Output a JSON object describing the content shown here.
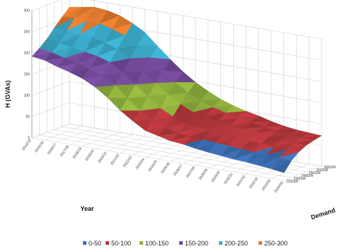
{
  "chart_data": {
    "type": "surface3d",
    "zlabel": "H (GVAs)",
    "xlabel": "Year",
    "ylabel": "Demand",
    "zlim": [
      0,
      300
    ],
    "z_ticks": [
      "0",
      "50",
      "100",
      "150",
      "200",
      "250",
      "300"
    ],
    "year_ticks": [
      "2014/15",
      "2015/16",
      "2016/17",
      "2017/18",
      "2018/19",
      "2019/20",
      "2020/21",
      "2021/22",
      "2022/23",
      "2023/24",
      "2024/25",
      "2025/26",
      "2026/27",
      "2027/28",
      "2028/29",
      "2029/30",
      "2030/31",
      "2031/32",
      "2032/33",
      "2033/34",
      "2034/35"
    ],
    "demand_ticks": [
      "220GW",
      "230GW",
      "240GW",
      "250GW",
      "260GW",
      "300GW"
    ],
    "grid": true,
    "legend_position": "bottom",
    "bands": [
      {
        "name": "0-50",
        "color": "#3a6fb5"
      },
      {
        "name": "50-100",
        "color": "#b5373c"
      },
      {
        "name": "100-150",
        "color": "#8fb03c"
      },
      {
        "name": "150-200",
        "color": "#734a9a"
      },
      {
        "name": "200-250",
        "color": "#3aa9c8"
      },
      {
        "name": "250-300",
        "color": "#e0792d"
      }
    ],
    "surface_z_by_year": [
      [
        192,
        205,
        220,
        240,
        258,
        275
      ],
      [
        188,
        200,
        215,
        238,
        262,
        280
      ],
      [
        178,
        192,
        210,
        235,
        260,
        285
      ],
      [
        170,
        185,
        205,
        232,
        258,
        282
      ],
      [
        160,
        178,
        200,
        225,
        250,
        275
      ],
      [
        145,
        165,
        190,
        215,
        240,
        262
      ],
      [
        125,
        148,
        172,
        198,
        222,
        245
      ],
      [
        100,
        122,
        148,
        172,
        198,
        218
      ],
      [
        80,
        98,
        125,
        150,
        172,
        192
      ],
      [
        62,
        80,
        102,
        128,
        150,
        168
      ],
      [
        55,
        68,
        88,
        110,
        130,
        148
      ],
      [
        48,
        60,
        76,
        96,
        115,
        132
      ],
      [
        45,
        58,
        72,
        90,
        106,
        118
      ],
      [
        40,
        55,
        70,
        85,
        98,
        108
      ],
      [
        36,
        52,
        66,
        80,
        92,
        100
      ],
      [
        33,
        50,
        64,
        76,
        86,
        94
      ],
      [
        30,
        48,
        60,
        72,
        80,
        86
      ],
      [
        28,
        45,
        58,
        68,
        76,
        80
      ],
      [
        25,
        43,
        56,
        66,
        72,
        76
      ],
      [
        22,
        42,
        55,
        64,
        70,
        74
      ],
      [
        18,
        40,
        54,
        63,
        68,
        72
      ]
    ]
  }
}
